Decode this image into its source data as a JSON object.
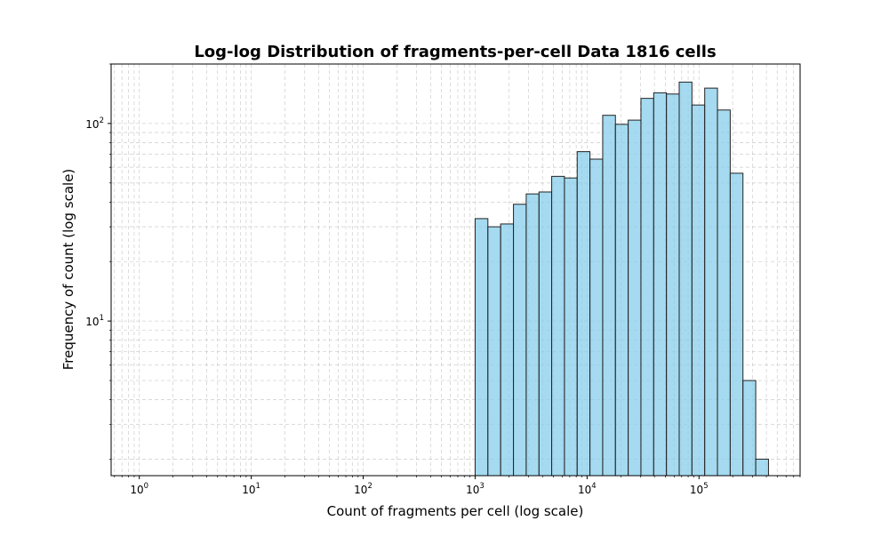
{
  "chart_data": {
    "type": "bar",
    "title": "Log-log Distribution of fragments-per-cell Data 1816 cells",
    "xlabel": "Count of fragments per cell (log scale)",
    "ylabel": "Frequency of count (log scale)",
    "xscale": "log",
    "yscale": "log",
    "xlim": [
      0.56,
      800000
    ],
    "ylim": [
      1.65,
      200
    ],
    "grid": true,
    "grid_style": "dashed, major and minor",
    "bar_color": "#87CEEB",
    "bar_edge_color": "#222222",
    "x_ticks": [
      {
        "base": "10",
        "exp": "0",
        "value": 1
      },
      {
        "base": "10",
        "exp": "1",
        "value": 10
      },
      {
        "base": "10",
        "exp": "2",
        "value": 100
      },
      {
        "base": "10",
        "exp": "3",
        "value": 1000
      },
      {
        "base": "10",
        "exp": "4",
        "value": 10000
      },
      {
        "base": "10",
        "exp": "5",
        "value": 100000
      }
    ],
    "y_ticks": [
      {
        "base": "10",
        "exp": "1",
        "value": 10
      },
      {
        "base": "10",
        "exp": "2",
        "value": 100
      }
    ],
    "bins": [
      {
        "x0": 1000,
        "x1": 1300,
        "count": 33
      },
      {
        "x0": 1300,
        "x1": 1690,
        "count": 30
      },
      {
        "x0": 1690,
        "x1": 2200,
        "count": 31
      },
      {
        "x0": 2200,
        "x1": 2860,
        "count": 39
      },
      {
        "x0": 2860,
        "x1": 3720,
        "count": 44
      },
      {
        "x0": 3720,
        "x1": 4830,
        "count": 45
      },
      {
        "x0": 4830,
        "x1": 6280,
        "count": 54
      },
      {
        "x0": 6280,
        "x1": 8160,
        "count": 53
      },
      {
        "x0": 8160,
        "x1": 10610,
        "count": 72
      },
      {
        "x0": 10610,
        "x1": 13790,
        "count": 66
      },
      {
        "x0": 13790,
        "x1": 17920,
        "count": 110
      },
      {
        "x0": 17920,
        "x1": 23300,
        "count": 99
      },
      {
        "x0": 23300,
        "x1": 30290,
        "count": 104
      },
      {
        "x0": 30290,
        "x1": 39370,
        "count": 134
      },
      {
        "x0": 39370,
        "x1": 51180,
        "count": 143
      },
      {
        "x0": 51180,
        "x1": 66530,
        "count": 141
      },
      {
        "x0": 66530,
        "x1": 86490,
        "count": 162
      },
      {
        "x0": 86490,
        "x1": 112440,
        "count": 124
      },
      {
        "x0": 112440,
        "x1": 146170,
        "count": 151
      },
      {
        "x0": 146170,
        "x1": 190020,
        "count": 117
      },
      {
        "x0": 190020,
        "x1": 247030,
        "count": 56
      },
      {
        "x0": 247030,
        "x1": 321140,
        "count": 5
      },
      {
        "x0": 321140,
        "x1": 417480,
        "count": 2
      }
    ]
  }
}
